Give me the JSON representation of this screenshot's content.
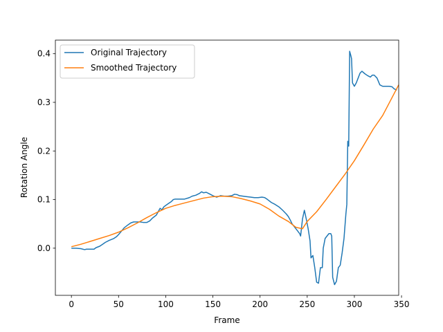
{
  "chart_data": {
    "type": "line",
    "title": "",
    "xlabel": "Frame",
    "ylabel": "Rotation Angle",
    "xlim": [
      -17,
      347
    ],
    "ylim": [
      -0.097,
      0.428
    ],
    "xticks": [
      0,
      50,
      100,
      150,
      200,
      250,
      300,
      350
    ],
    "xtick_labels": [
      "0",
      "50",
      "100",
      "150",
      "200",
      "250",
      "300",
      "350"
    ],
    "yticks": [
      0.0,
      0.1,
      0.2,
      0.3,
      0.4
    ],
    "ytick_labels": [
      "0.0",
      "0.1",
      "0.2",
      "0.3",
      "0.4"
    ],
    "grid": false,
    "legend_position": "upper-left",
    "series": [
      {
        "name": "Original Trajectory",
        "color": "#1f77b4",
        "points": [
          [
            0,
            0.0
          ],
          [
            5,
            0.0
          ],
          [
            10,
            -0.001
          ],
          [
            14,
            -0.003
          ],
          [
            16,
            -0.002
          ],
          [
            20,
            -0.002
          ],
          [
            24,
            -0.002
          ],
          [
            26,
            0.001
          ],
          [
            30,
            0.004
          ],
          [
            33,
            0.008
          ],
          [
            36,
            0.012
          ],
          [
            40,
            0.016
          ],
          [
            45,
            0.02
          ],
          [
            48,
            0.024
          ],
          [
            50,
            0.028
          ],
          [
            53,
            0.035
          ],
          [
            56,
            0.042
          ],
          [
            60,
            0.048
          ],
          [
            63,
            0.052
          ],
          [
            66,
            0.054
          ],
          [
            70,
            0.054
          ],
          [
            73,
            0.054
          ],
          [
            76,
            0.053
          ],
          [
            80,
            0.053
          ],
          [
            83,
            0.056
          ],
          [
            86,
            0.062
          ],
          [
            90,
            0.068
          ],
          [
            92,
            0.075
          ],
          [
            94,
            0.082
          ],
          [
            96,
            0.079
          ],
          [
            98,
            0.085
          ],
          [
            100,
            0.088
          ],
          [
            103,
            0.092
          ],
          [
            106,
            0.096
          ],
          [
            108,
            0.1
          ],
          [
            110,
            0.101
          ],
          [
            115,
            0.101
          ],
          [
            120,
            0.101
          ],
          [
            125,
            0.104
          ],
          [
            128,
            0.107
          ],
          [
            132,
            0.109
          ],
          [
            136,
            0.113
          ],
          [
            138,
            0.116
          ],
          [
            140,
            0.114
          ],
          [
            143,
            0.115
          ],
          [
            146,
            0.112
          ],
          [
            150,
            0.108
          ],
          [
            154,
            0.105
          ],
          [
            158,
            0.108
          ],
          [
            162,
            0.107
          ],
          [
            166,
            0.107
          ],
          [
            170,
            0.108
          ],
          [
            173,
            0.111
          ],
          [
            176,
            0.11
          ],
          [
            178,
            0.108
          ],
          [
            182,
            0.107
          ],
          [
            186,
            0.106
          ],
          [
            190,
            0.105
          ],
          [
            194,
            0.104
          ],
          [
            198,
            0.104
          ],
          [
            202,
            0.105
          ],
          [
            205,
            0.104
          ],
          [
            208,
            0.1
          ],
          [
            212,
            0.094
          ],
          [
            216,
            0.09
          ],
          [
            220,
            0.085
          ],
          [
            224,
            0.078
          ],
          [
            228,
            0.07
          ],
          [
            230,
            0.065
          ],
          [
            232,
            0.058
          ],
          [
            234,
            0.05
          ],
          [
            236,
            0.045
          ],
          [
            238,
            0.04
          ],
          [
            240,
            0.035
          ],
          [
            242,
            0.03
          ],
          [
            243,
            0.025
          ],
          [
            245,
            0.06
          ],
          [
            247,
            0.078
          ],
          [
            249,
            0.06
          ],
          [
            251,
            0.04
          ],
          [
            253,
            0.015
          ],
          [
            254,
            -0.02
          ],
          [
            256,
            -0.015
          ],
          [
            258,
            -0.04
          ],
          [
            260,
            -0.07
          ],
          [
            262,
            -0.072
          ],
          [
            264,
            -0.04
          ],
          [
            266,
            -0.04
          ],
          [
            267,
            0.0
          ],
          [
            269,
            0.02
          ],
          [
            271,
            0.025
          ],
          [
            273,
            0.03
          ],
          [
            275,
            0.03
          ],
          [
            276,
            0.025
          ],
          [
            277,
            -0.06
          ],
          [
            279,
            -0.075
          ],
          [
            281,
            -0.068
          ],
          [
            283,
            -0.04
          ],
          [
            285,
            -0.035
          ],
          [
            287,
            -0.01
          ],
          [
            289,
            0.02
          ],
          [
            291,
            0.07
          ],
          [
            292,
            0.09
          ],
          [
            293,
            0.22
          ],
          [
            294,
            0.21
          ],
          [
            295,
            0.405
          ],
          [
            296,
            0.398
          ],
          [
            297,
            0.39
          ],
          [
            298,
            0.34
          ],
          [
            300,
            0.333
          ],
          [
            302,
            0.34
          ],
          [
            304,
            0.35
          ],
          [
            306,
            0.36
          ],
          [
            308,
            0.364
          ],
          [
            311,
            0.359
          ],
          [
            314,
            0.355
          ],
          [
            317,
            0.352
          ],
          [
            319,
            0.356
          ],
          [
            321,
            0.356
          ],
          [
            324,
            0.35
          ],
          [
            327,
            0.336
          ],
          [
            330,
            0.333
          ],
          [
            334,
            0.333
          ],
          [
            337,
            0.333
          ],
          [
            340,
            0.332
          ],
          [
            342,
            0.328
          ],
          [
            345,
            0.325
          ]
        ]
      },
      {
        "name": "Smoothed Trajectory",
        "color": "#ff7f0e",
        "points": [
          [
            0,
            0.003
          ],
          [
            10,
            0.008
          ],
          [
            20,
            0.014
          ],
          [
            30,
            0.02
          ],
          [
            40,
            0.026
          ],
          [
            50,
            0.033
          ],
          [
            60,
            0.042
          ],
          [
            70,
            0.052
          ],
          [
            80,
            0.063
          ],
          [
            90,
            0.073
          ],
          [
            100,
            0.082
          ],
          [
            110,
            0.088
          ],
          [
            120,
            0.093
          ],
          [
            130,
            0.098
          ],
          [
            140,
            0.103
          ],
          [
            150,
            0.106
          ],
          [
            160,
            0.107
          ],
          [
            170,
            0.106
          ],
          [
            180,
            0.102
          ],
          [
            190,
            0.097
          ],
          [
            200,
            0.091
          ],
          [
            210,
            0.08
          ],
          [
            220,
            0.066
          ],
          [
            230,
            0.055
          ],
          [
            238,
            0.043
          ],
          [
            245,
            0.04
          ],
          [
            250,
            0.055
          ],
          [
            260,
            0.075
          ],
          [
            270,
            0.1
          ],
          [
            280,
            0.126
          ],
          [
            290,
            0.152
          ],
          [
            300,
            0.18
          ],
          [
            310,
            0.212
          ],
          [
            320,
            0.245
          ],
          [
            330,
            0.273
          ],
          [
            340,
            0.31
          ],
          [
            347,
            0.336
          ]
        ]
      }
    ]
  }
}
